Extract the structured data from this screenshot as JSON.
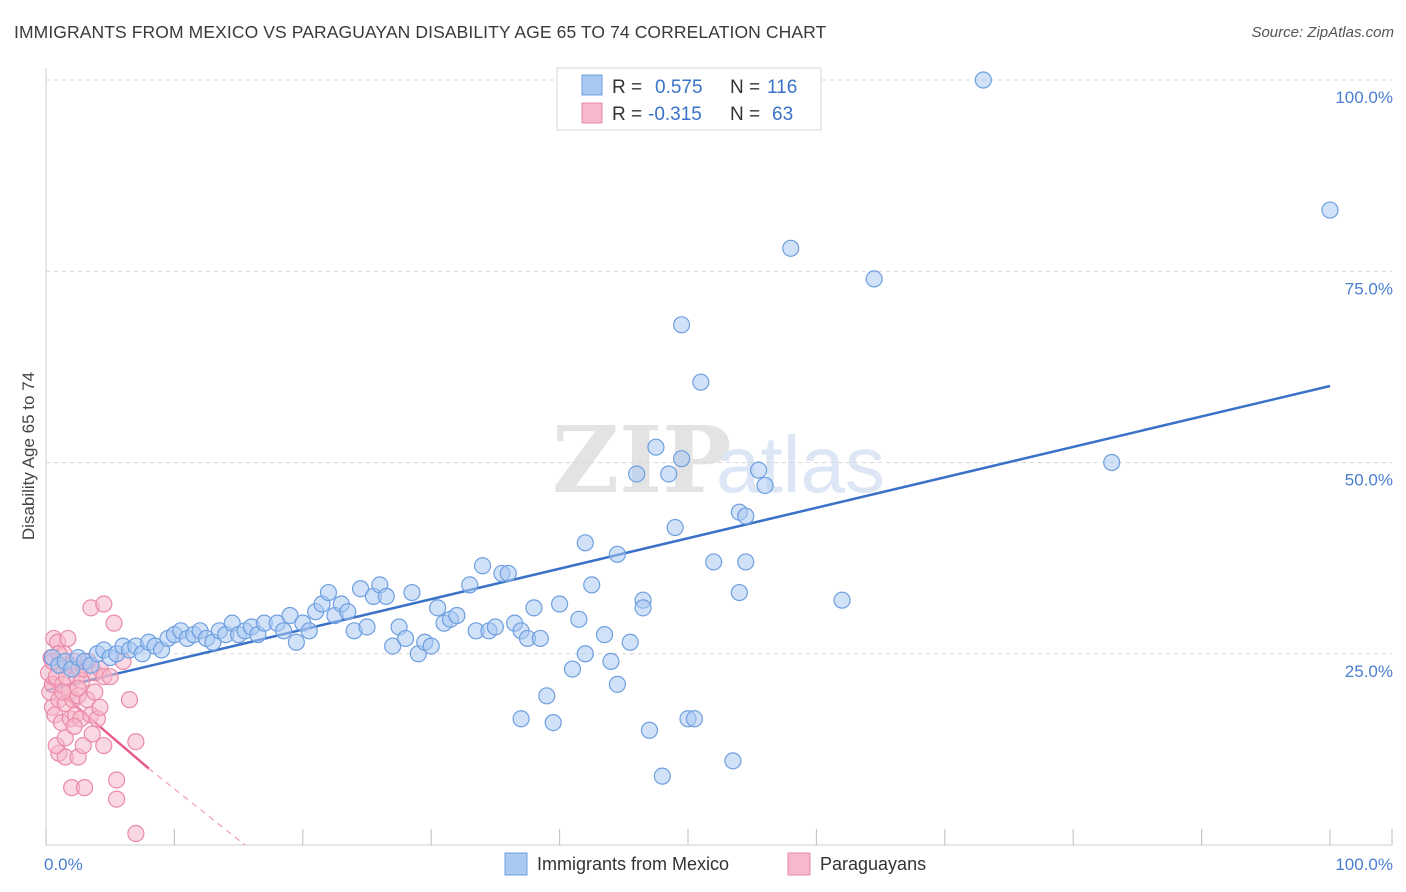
{
  "header": {
    "title": "IMMIGRANTS FROM MEXICO VS PARAGUAYAN DISABILITY AGE 65 TO 74 CORRELATION CHART",
    "source": "Source: ZipAtlas.com"
  },
  "watermark": "ZIPatlas",
  "colors": {
    "blue_fill": "#a9c8f2",
    "blue_stroke": "#6e9fe0",
    "blue_line": "#3a72c8",
    "pink_fill": "#f6b8cb",
    "pink_stroke": "#ea8aa8",
    "pink_line": "#e85b8a",
    "grid": "#d8d8d8",
    "tick_label": "#4a7fd0"
  },
  "chart_data": {
    "type": "scatter",
    "title": "IMMIGRANTS FROM MEXICO VS PARAGUAYAN DISABILITY AGE 65 TO 74 CORRELATION CHART",
    "xlabel": "",
    "ylabel": "Disability Age 65 to 74",
    "xlim": [
      0,
      100
    ],
    "ylim": [
      0,
      102
    ],
    "x_tick_labels": [
      "0.0%",
      "100.0%"
    ],
    "y_ticks": [
      25,
      50,
      75,
      100
    ],
    "y_tick_labels": [
      "25.0%",
      "50.0%",
      "75.0%",
      "100.0%"
    ],
    "grid": true,
    "legend": {
      "position": "top-center",
      "rows": [
        {
          "r_label": "R =",
          "r_value": "0.575",
          "n_label": "N =",
          "n_value": "116"
        },
        {
          "r_label": "R =",
          "r_value": "-0.315",
          "n_label": "N =",
          "n_value": "63"
        }
      ]
    },
    "series": [
      {
        "name": "Immigrants from Mexico",
        "color": "#a9c8f2",
        "trend": {
          "x": [
            0,
            100
          ],
          "y": [
            20.2,
            60.0
          ]
        },
        "points": [
          [
            0.5,
            24.5
          ],
          [
            1,
            23.5
          ],
          [
            1.5,
            24
          ],
          [
            2,
            23
          ],
          [
            2.5,
            24.5
          ],
          [
            3,
            24
          ],
          [
            3.5,
            23.5
          ],
          [
            4,
            25
          ],
          [
            4.5,
            25.5
          ],
          [
            5,
            24.5
          ],
          [
            5.5,
            25
          ],
          [
            6,
            26
          ],
          [
            6.5,
            25.5
          ],
          [
            7,
            26
          ],
          [
            7.5,
            25
          ],
          [
            8,
            26.5
          ],
          [
            8.5,
            26
          ],
          [
            9,
            25.5
          ],
          [
            9.5,
            27
          ],
          [
            10,
            27.5
          ],
          [
            10.5,
            28
          ],
          [
            11,
            27
          ],
          [
            11.5,
            27.5
          ],
          [
            12,
            28
          ],
          [
            12.5,
            27
          ],
          [
            13,
            26.5
          ],
          [
            13.5,
            28
          ],
          [
            14,
            27.5
          ],
          [
            14.5,
            29
          ],
          [
            15,
            27.5
          ],
          [
            15.5,
            28
          ],
          [
            16,
            28.5
          ],
          [
            16.5,
            27.5
          ],
          [
            17,
            29
          ],
          [
            18,
            29
          ],
          [
            18.5,
            28
          ],
          [
            19,
            30
          ],
          [
            19.5,
            26.5
          ],
          [
            20,
            29
          ],
          [
            20.5,
            28
          ],
          [
            21,
            30.5
          ],
          [
            21.5,
            31.5
          ],
          [
            22,
            33
          ],
          [
            22.5,
            30
          ],
          [
            23,
            31.5
          ],
          [
            23.5,
            30.5
          ],
          [
            24,
            28
          ],
          [
            24.5,
            33.5
          ],
          [
            25,
            28.5
          ],
          [
            25.5,
            32.5
          ],
          [
            26,
            34
          ],
          [
            26.5,
            32.5
          ],
          [
            27,
            26
          ],
          [
            27.5,
            28.5
          ],
          [
            28,
            27
          ],
          [
            28.5,
            33
          ],
          [
            29,
            25
          ],
          [
            29.5,
            26.5
          ],
          [
            30,
            26
          ],
          [
            30.5,
            31
          ],
          [
            31,
            29
          ],
          [
            31.5,
            29.5
          ],
          [
            32,
            30
          ],
          [
            33,
            34
          ],
          [
            33.5,
            28
          ],
          [
            34,
            36.5
          ],
          [
            34.5,
            28
          ],
          [
            35,
            28.5
          ],
          [
            35.5,
            35.5
          ],
          [
            36,
            35.5
          ],
          [
            36.5,
            29
          ],
          [
            37,
            28
          ],
          [
            37.5,
            27
          ],
          [
            37,
            16.5
          ],
          [
            38,
            31
          ],
          [
            38.5,
            27
          ],
          [
            39,
            19.5
          ],
          [
            39.5,
            16
          ],
          [
            40,
            31.5
          ],
          [
            41,
            23
          ],
          [
            41.5,
            29.5
          ],
          [
            42,
            25
          ],
          [
            42,
            39.5
          ],
          [
            42.5,
            34
          ],
          [
            43.5,
            27.5
          ],
          [
            44,
            24
          ],
          [
            44.5,
            21
          ],
          [
            44.5,
            38
          ],
          [
            45.5,
            26.5
          ],
          [
            46,
            48.5
          ],
          [
            46.5,
            32
          ],
          [
            46.5,
            31
          ],
          [
            47,
            15
          ],
          [
            47.5,
            52
          ],
          [
            48,
            9
          ],
          [
            48.5,
            48.5
          ],
          [
            49,
            41.5
          ],
          [
            49.5,
            50.5
          ],
          [
            49.5,
            68
          ],
          [
            50,
            16.5
          ],
          [
            50.5,
            16.5
          ],
          [
            51,
            60.5
          ],
          [
            52,
            37
          ],
          [
            53.5,
            11
          ],
          [
            54,
            43.5
          ],
          [
            54,
            33
          ],
          [
            54.5,
            37
          ],
          [
            54.5,
            43
          ],
          [
            55.5,
            49
          ],
          [
            56,
            47
          ],
          [
            58,
            78
          ],
          [
            62,
            32
          ],
          [
            64.5,
            74
          ],
          [
            73,
            100
          ],
          [
            83,
            50
          ],
          [
            100,
            83
          ]
        ]
      },
      {
        "name": "Paraguayans",
        "color": "#f6b8cb",
        "trend": {
          "x": [
            0,
            8
          ],
          "y": [
            21.5,
            10.0
          ],
          "dashed_extension": {
            "x": [
              8,
              15.5
            ],
            "y": [
              10.0,
              0
            ]
          }
        },
        "points": [
          [
            0.2,
            22.5
          ],
          [
            0.3,
            20
          ],
          [
            0.4,
            24.5
          ],
          [
            0.5,
            18
          ],
          [
            0.5,
            21
          ],
          [
            0.6,
            27
          ],
          [
            0.7,
            17
          ],
          [
            0.8,
            22
          ],
          [
            0.9,
            26.5
          ],
          [
            1,
            19
          ],
          [
            1,
            12
          ],
          [
            1.1,
            23.5
          ],
          [
            1.2,
            16
          ],
          [
            1.3,
            21
          ],
          [
            1.4,
            25
          ],
          [
            1.5,
            18.5
          ],
          [
            1.5,
            11.5
          ],
          [
            1.6,
            22
          ],
          [
            1.7,
            27
          ],
          [
            1.8,
            20
          ],
          [
            1.9,
            16.5
          ],
          [
            2,
            23.5
          ],
          [
            2,
            7.5
          ],
          [
            2.1,
            19
          ],
          [
            2.2,
            24
          ],
          [
            2.3,
            17
          ],
          [
            2.4,
            22
          ],
          [
            2.5,
            11.5
          ],
          [
            2.5,
            19.5
          ],
          [
            2.6,
            23
          ],
          [
            2.7,
            16.5
          ],
          [
            2.8,
            21.5
          ],
          [
            2.9,
            13
          ],
          [
            3,
            23
          ],
          [
            3,
            7.5
          ],
          [
            3.2,
            19
          ],
          [
            3.3,
            24
          ],
          [
            3.5,
            17
          ],
          [
            3.6,
            14.5
          ],
          [
            3.8,
            22.5
          ],
          [
            4,
            16.5
          ],
          [
            4.2,
            23
          ],
          [
            4.5,
            13
          ],
          [
            4.5,
            22
          ],
          [
            3.5,
            31
          ],
          [
            4.5,
            31.5
          ],
          [
            5,
            22
          ],
          [
            5.3,
            29
          ],
          [
            5.5,
            6
          ],
          [
            5.5,
            8.5
          ],
          [
            6,
            24
          ],
          [
            6.5,
            19
          ],
          [
            7,
            13.5
          ],
          [
            7,
            1.5
          ],
          [
            0.8,
            13
          ],
          [
            1.5,
            14
          ],
          [
            2.2,
            15.5
          ],
          [
            0.5,
            24
          ],
          [
            1,
            25
          ],
          [
            1.3,
            20
          ],
          [
            2.5,
            20.5
          ],
          [
            3.8,
            20
          ],
          [
            4.2,
            18
          ]
        ]
      }
    ]
  },
  "bottom_legend": [
    {
      "label": "Immigrants from Mexico"
    },
    {
      "label": "Paraguayans"
    }
  ]
}
